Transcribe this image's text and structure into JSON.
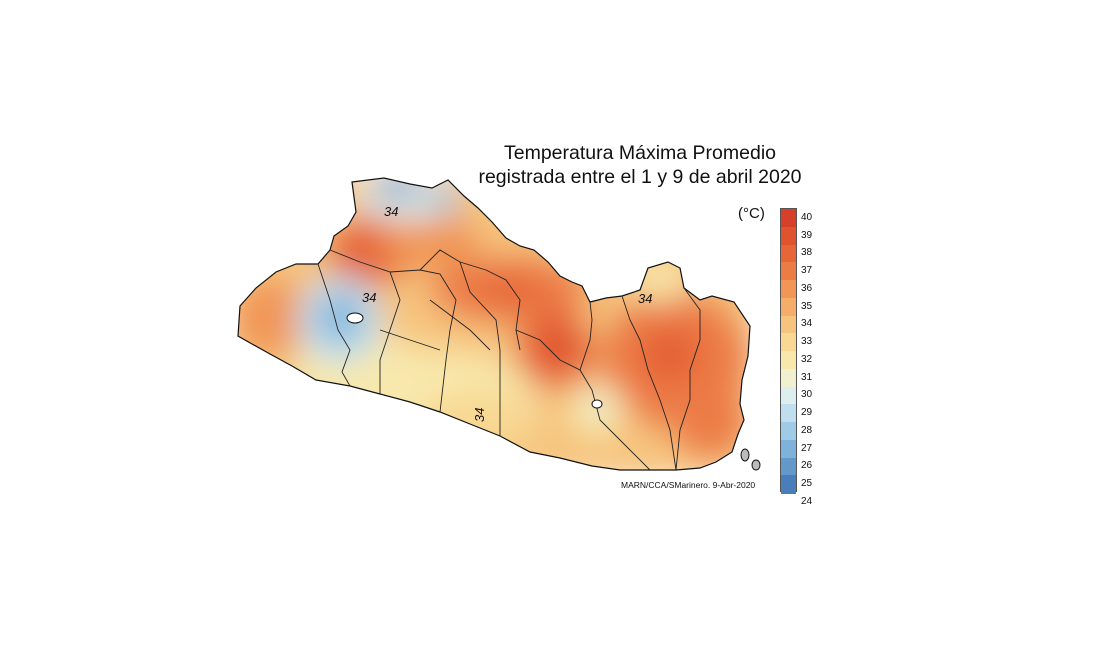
{
  "title_line1": "Temperatura Máxima Promedio",
  "title_line2": "registrada entre el 1 y 9 de abril 2020",
  "legend": {
    "unit": "(°C)",
    "ticks": [
      "40",
      "39",
      "38",
      "37",
      "36",
      "35",
      "34",
      "33",
      "32",
      "31",
      "30",
      "29",
      "28",
      "27",
      "26",
      "25",
      "24"
    ],
    "colors": [
      "#d6402a",
      "#e0532f",
      "#e66638",
      "#ec7c46",
      "#f19656",
      "#f4ae69",
      "#f6c47e",
      "#f8d893",
      "#f8e8ac",
      "#f2f1cf",
      "#dceeed",
      "#bfdfee",
      "#a0cbe6",
      "#7fb2da",
      "#6398cb",
      "#4a7ebb"
    ]
  },
  "contour_labels": [
    "34",
    "34",
    "34",
    "34"
  ],
  "credit": "MARN/CCA/SMarinero. 9-Abr-2020"
}
